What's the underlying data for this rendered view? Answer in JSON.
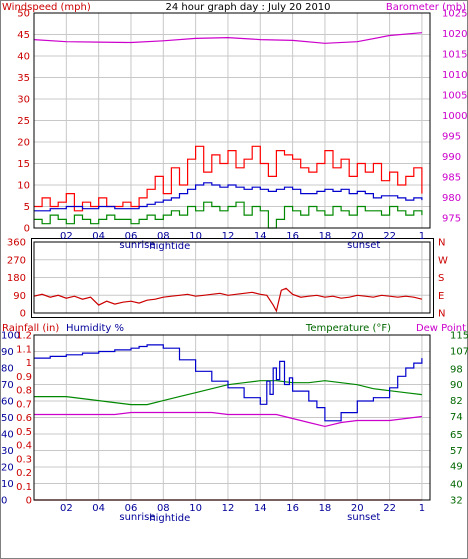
{
  "header": {
    "title": "24 hour graph day : July 20 2010",
    "left_label": "Windspeed (mph)",
    "right_label": "Barometer (mb)"
  },
  "colors": {
    "background": "#ffffff",
    "frame": "#000000",
    "grid": "#c8c8c8",
    "wind_left_text": "#cc0000",
    "barometer_text": "#cc00cc",
    "humidity_text": "#000099",
    "temperature_text": "#006600",
    "dew_text": "#cc00cc",
    "gust": "#ff0000",
    "avg_wind": "#0000cc",
    "wind_low": "#008800",
    "barometer": "#cc00cc",
    "direction": "#cc0000",
    "rain": "#cc0000",
    "humidity": "#0000cc",
    "temperature": "#008800",
    "dew_point": "#cc00cc"
  },
  "x_axis": {
    "tick_labels": [
      "02",
      "04",
      "06",
      "08",
      "10",
      "12",
      "14",
      "16",
      "18",
      "20",
      "22",
      "1"
    ],
    "tick_hours": [
      2,
      4,
      6,
      8,
      10,
      12,
      14,
      16,
      18,
      20,
      22,
      24
    ],
    "sunrise_label": "sunrise",
    "hightide_label": "hightide",
    "sunset_label": "sunset",
    "sunrise_hour": 6.4,
    "hightide_hour": 8.4,
    "sunset_hour": 20.4
  },
  "chart_data": [
    {
      "type": "line",
      "panel": "wind_barometer",
      "xlim": [
        0,
        24.5
      ],
      "left_axis": {
        "label": "Windspeed (mph)",
        "ylim": [
          0,
          50
        ],
        "ticks": [
          0,
          5,
          10,
          15,
          20,
          25,
          30,
          35,
          40,
          45,
          50
        ]
      },
      "right_axis": {
        "label": "Barometer (mb)",
        "ylim": [
          972.5,
          1025
        ],
        "ticks": [
          975,
          980,
          985,
          990,
          995,
          1000,
          1005,
          1010,
          1015,
          1020,
          1025
        ]
      },
      "grid": true,
      "series": [
        {
          "axis": "left",
          "x": [
            0,
            0.5,
            1,
            1.5,
            2,
            2.5,
            3,
            3.5,
            4,
            4.5,
            5,
            5.5,
            6,
            6.5,
            7,
            7.5,
            8,
            8.5,
            9,
            9.5,
            10,
            10.5,
            11,
            11.5,
            12,
            12.5,
            13,
            13.5,
            14,
            14.5,
            15,
            15.5,
            16,
            16.5,
            17,
            17.5,
            18,
            18.5,
            19,
            19.5,
            20,
            20.5,
            21,
            21.5,
            22,
            22.5,
            23,
            23.5,
            24
          ],
          "y": [
            5,
            7,
            5,
            6,
            8,
            4,
            6,
            5,
            7,
            5,
            5,
            6,
            5,
            7,
            9,
            12,
            8,
            14,
            10,
            16,
            19,
            13,
            17,
            15,
            18,
            14,
            16,
            19,
            15,
            12,
            18,
            17,
            16,
            14,
            13,
            15,
            18,
            14,
            16,
            12,
            15,
            13,
            15,
            11,
            13,
            10,
            12,
            14,
            8
          ]
        },
        {
          "axis": "left",
          "x": [
            0,
            1,
            2,
            3,
            4,
            5,
            6,
            6.5,
            7,
            7.5,
            8,
            8.5,
            9,
            9.5,
            10,
            10.5,
            11,
            11.5,
            12,
            12.5,
            13,
            13.5,
            14,
            14.5,
            15,
            15.5,
            16,
            16.5,
            17,
            17.5,
            18,
            18.5,
            19,
            19.5,
            20,
            20.5,
            21,
            21.5,
            22,
            22.5,
            23,
            23.5,
            24
          ],
          "y": [
            4,
            4.5,
            5,
            4.5,
            5,
            4.5,
            4.5,
            5,
            5.5,
            6,
            6.5,
            7,
            8,
            9,
            10,
            10.5,
            10,
            9.5,
            10,
            9.5,
            9,
            9.5,
            9,
            8.5,
            9,
            9.5,
            9,
            8,
            8,
            8.5,
            9,
            8.5,
            9,
            8,
            8.5,
            8,
            7,
            7.5,
            7.5,
            7,
            6.5,
            7,
            6.5
          ]
        },
        {
          "axis": "left",
          "x": [
            0,
            0.5,
            1,
            1.5,
            2,
            2.5,
            3,
            3.5,
            4,
            4.5,
            5,
            5.5,
            6,
            6.5,
            7,
            7.5,
            8,
            8.5,
            9,
            9.5,
            10,
            10.5,
            11,
            11.5,
            12,
            12.5,
            13,
            13.5,
            14,
            14.5,
            15,
            15.5,
            16,
            16.5,
            17,
            17.5,
            18,
            18.5,
            19,
            19.5,
            20,
            20.5,
            21,
            21.5,
            22,
            22.5,
            23,
            23.5,
            24
          ],
          "y": [
            2,
            1,
            3,
            2,
            1,
            3,
            2,
            1,
            2,
            3,
            2,
            2,
            1,
            2,
            3,
            2,
            3,
            4,
            3,
            5,
            4,
            6,
            5,
            4,
            5,
            6,
            3,
            5,
            4,
            0,
            2,
            5,
            4,
            3,
            5,
            4,
            3,
            5,
            4,
            3,
            5,
            4,
            4,
            3,
            5,
            4,
            3,
            4,
            3
          ]
        },
        {
          "axis": "right",
          "x": [
            0,
            2,
            4,
            6,
            8,
            10,
            12,
            14,
            16,
            18,
            20,
            22,
            24
          ],
          "y": [
            1018.5,
            1018.0,
            1017.9,
            1017.8,
            1018.2,
            1018.8,
            1019.0,
            1018.5,
            1018.3,
            1017.6,
            1018.0,
            1019.5,
            1020.2
          ]
        }
      ]
    },
    {
      "type": "line",
      "panel": "wind_direction",
      "xlim": [
        0,
        24.5
      ],
      "left_axis": {
        "ylim": [
          0,
          360
        ],
        "ticks": [
          0,
          90,
          180,
          270,
          360
        ],
        "tick_labels": [
          "0",
          "90",
          "180",
          "270",
          "360"
        ]
      },
      "right_axis": {
        "ticks": [
          0,
          90,
          180,
          270,
          360
        ],
        "tick_labels": [
          "N",
          "E",
          "S",
          "W",
          "N"
        ]
      },
      "grid": true,
      "series": [
        {
          "x": [
            0,
            0.5,
            1,
            1.5,
            2,
            2.5,
            3,
            3.5,
            4,
            4.5,
            5,
            5.5,
            6,
            6.5,
            7,
            7.5,
            8,
            8.5,
            9,
            9.5,
            10,
            10.5,
            11,
            11.5,
            12,
            12.5,
            13,
            13.5,
            14,
            14.4,
            14.8,
            15,
            15.3,
            15.6,
            16,
            16.5,
            17,
            17.5,
            18,
            18.5,
            19,
            19.5,
            20,
            20.5,
            21,
            21.5,
            22,
            22.5,
            23,
            23.5,
            24
          ],
          "y": [
            85,
            95,
            80,
            90,
            75,
            85,
            70,
            80,
            40,
            60,
            45,
            55,
            60,
            50,
            65,
            70,
            80,
            85,
            90,
            95,
            85,
            90,
            95,
            100,
            90,
            95,
            100,
            105,
            95,
            90,
            40,
            10,
            115,
            125,
            95,
            80,
            85,
            90,
            80,
            85,
            75,
            80,
            90,
            85,
            80,
            90,
            85,
            80,
            85,
            80,
            70
          ]
        }
      ]
    },
    {
      "type": "line",
      "panel": "rain_humidity_temperature",
      "xlim": [
        0,
        24.5
      ],
      "header_labels": {
        "rainfall": "Rainfall (in)",
        "humidity": "Humidity %",
        "temperature": "Temperature (°F)",
        "dew_point": "Dew Point"
      },
      "humidity_axis": {
        "ylim": [
          0,
          100
        ],
        "ticks": [
          0,
          10,
          20,
          30,
          40,
          50,
          60,
          70,
          80,
          90,
          100
        ]
      },
      "rain_axis": {
        "ylim": [
          0,
          1.2
        ],
        "ticks": [
          0,
          0.1,
          0.2,
          0.3,
          0.4,
          0.5,
          0.6,
          0.7,
          0.8,
          0.9,
          1.0,
          1.1,
          1.2
        ],
        "tick_labels": [
          "0",
          "0.1",
          "0.2",
          "0.3",
          "0.4",
          "0.5",
          "0.6",
          "0.7",
          "0.8",
          "0.9",
          "1",
          "1.1",
          "1.2"
        ]
      },
      "temperature_axis": {
        "ylim": [
          32,
          115
        ],
        "ticks": [
          32,
          40,
          49,
          57,
          65,
          74,
          82,
          90,
          98,
          107,
          115
        ]
      },
      "grid": true,
      "series": [
        {
          "axis": "rain",
          "x": [
            0,
            24
          ],
          "y": [
            0,
            0
          ]
        },
        {
          "axis": "humidity",
          "x": [
            0,
            1,
            2,
            3,
            4,
            5,
            6,
            6.5,
            7,
            7.5,
            8,
            9,
            10,
            11,
            12,
            13,
            14,
            14.4,
            14.6,
            14.8,
            15,
            15.2,
            15.5,
            15.8,
            16,
            16.5,
            17,
            17.5,
            18,
            19,
            20,
            21,
            22,
            22.5,
            23,
            23.5,
            24
          ],
          "y": [
            86,
            87,
            88,
            89,
            90,
            91,
            92,
            93,
            94,
            94,
            92,
            85,
            78,
            72,
            68,
            62,
            58,
            72,
            64,
            80,
            73,
            84,
            70,
            74,
            66,
            66,
            60,
            56,
            48,
            53,
            60,
            62,
            68,
            75,
            80,
            83,
            86
          ]
        },
        {
          "axis": "temperature",
          "x": [
            0,
            1,
            2,
            3,
            4,
            5,
            6,
            7,
            8,
            9,
            10,
            11,
            12,
            13,
            14,
            15,
            16,
            17,
            18,
            19,
            20,
            21,
            22,
            23,
            24
          ],
          "y": [
            84,
            84,
            84,
            83,
            82,
            81,
            80,
            80,
            82,
            84,
            86,
            88,
            90,
            91,
            92,
            92,
            91,
            91,
            92,
            91,
            90,
            88,
            87,
            86,
            85
          ]
        },
        {
          "axis": "temperature",
          "x": [
            0,
            1,
            2,
            3,
            4,
            5,
            6,
            7,
            8,
            9,
            10,
            11,
            12,
            13,
            14,
            15,
            16,
            17,
            18,
            19,
            20,
            21,
            22,
            23,
            24
          ],
          "y": [
            75,
            75,
            75,
            75,
            75,
            75,
            76,
            76,
            76,
            76,
            76,
            76,
            75,
            75,
            75,
            75,
            73,
            71,
            69,
            71,
            72,
            72,
            72,
            73,
            74
          ]
        }
      ]
    }
  ]
}
